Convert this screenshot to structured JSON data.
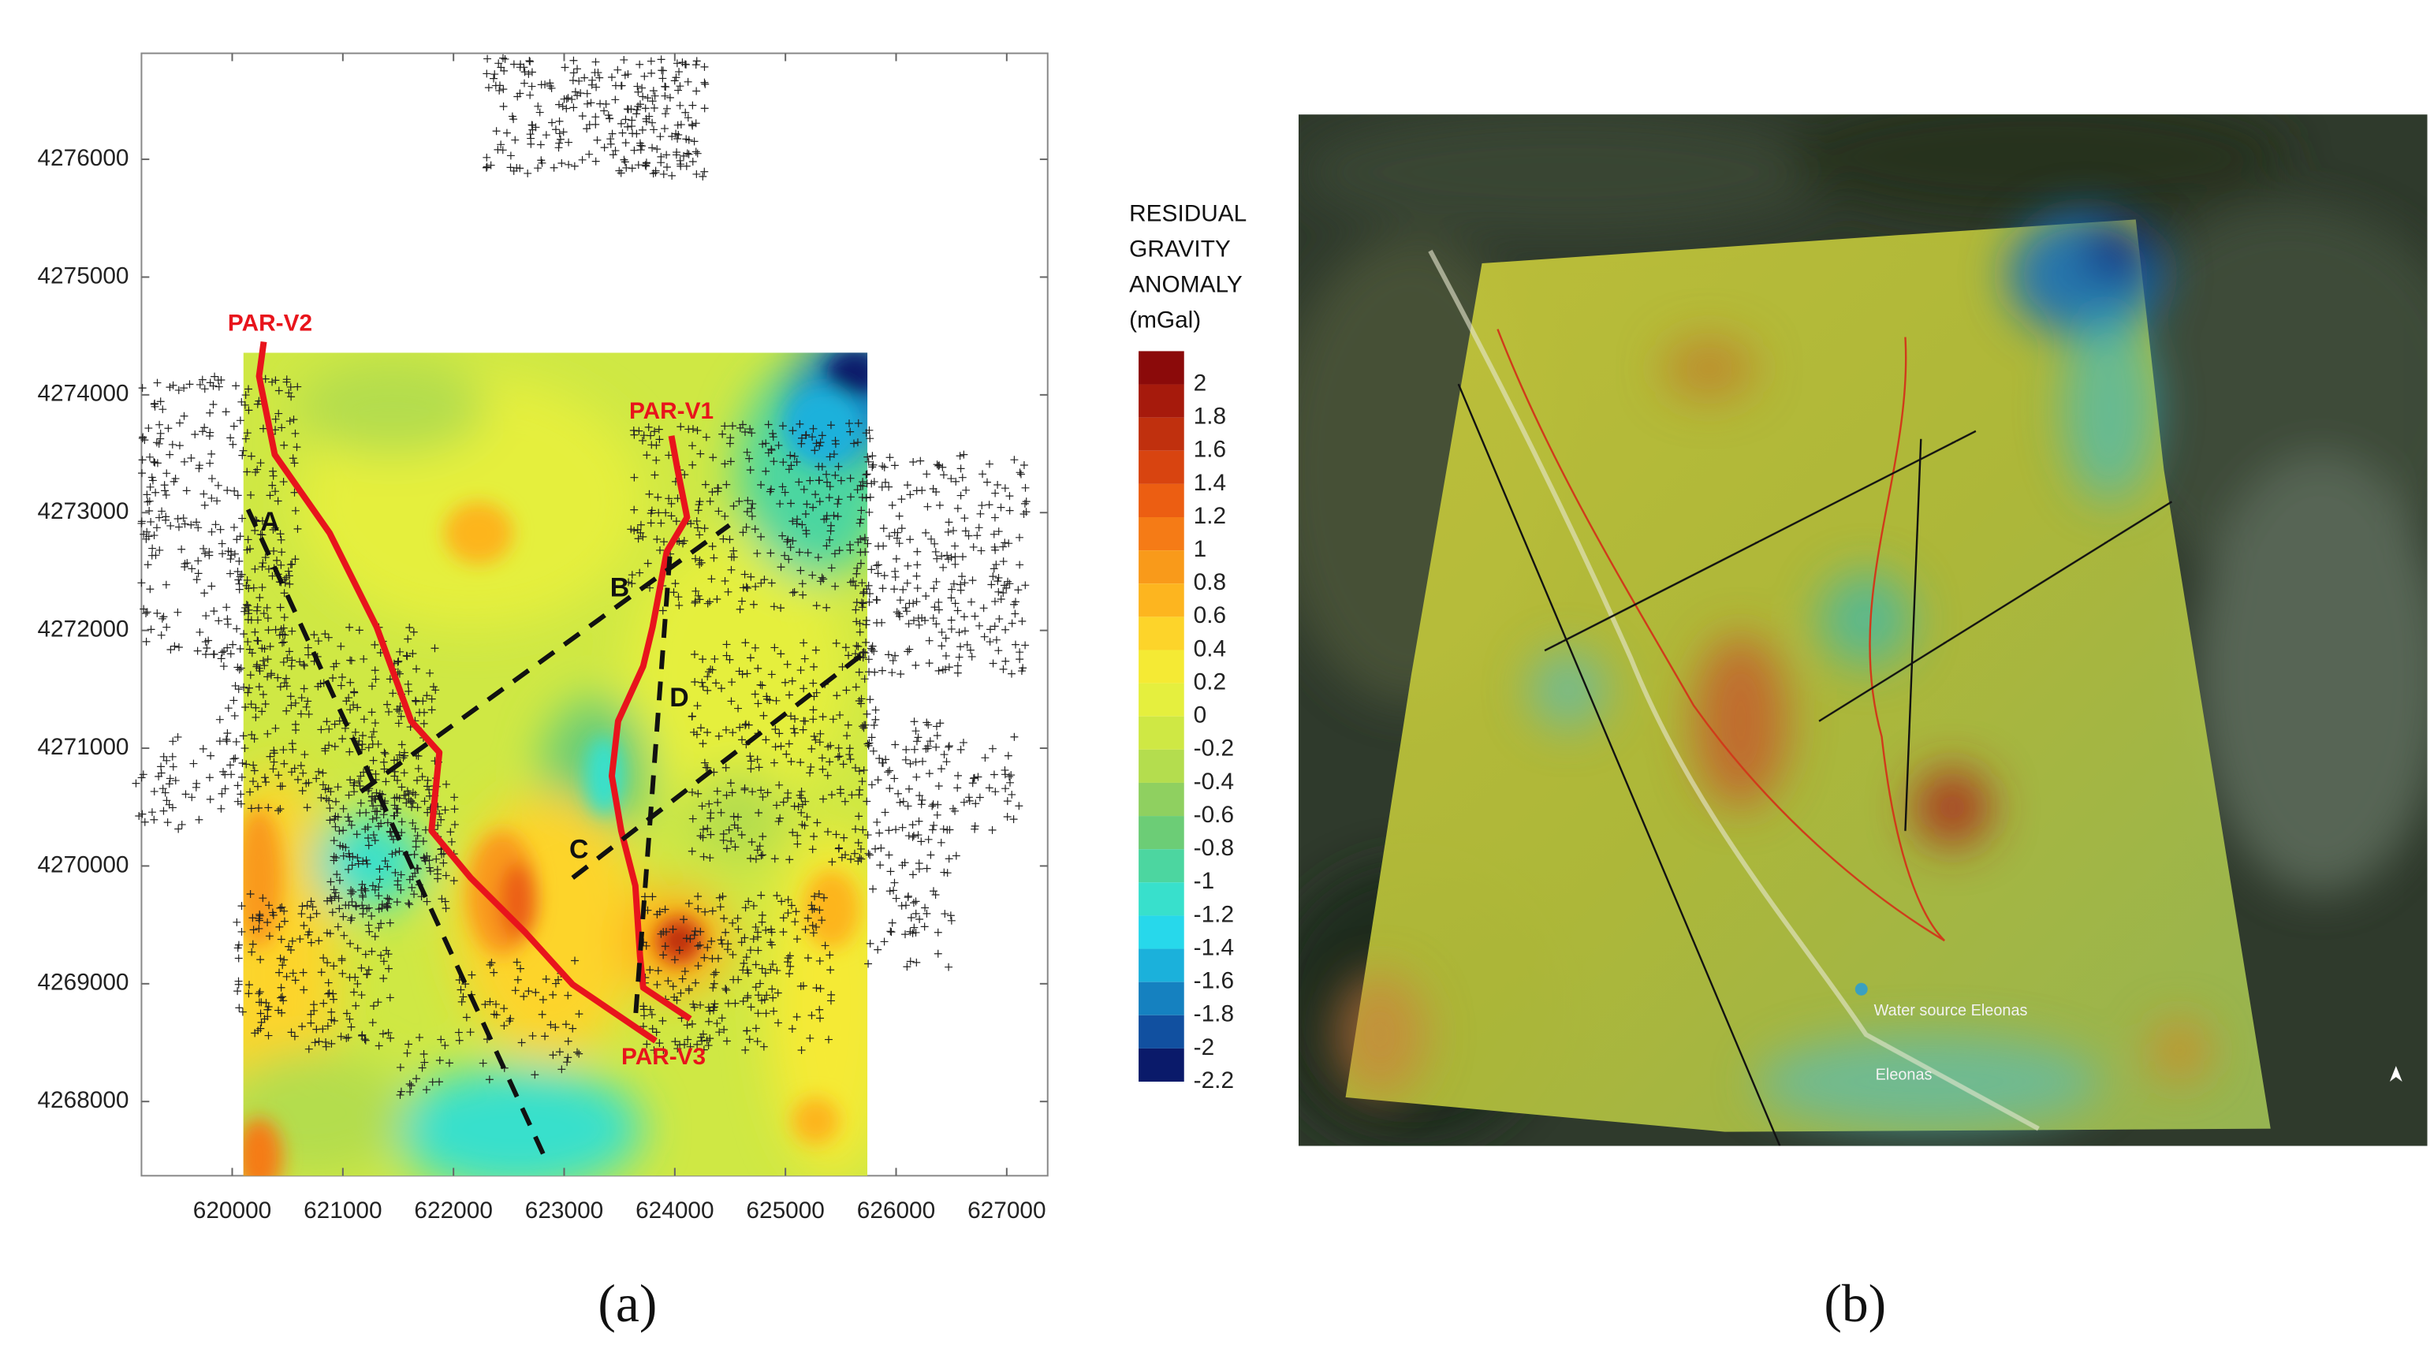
{
  "panel_a": {
    "xlim": [
      619180,
      627370
    ],
    "ylim": [
      4267370,
      4276900
    ],
    "xticks": [
      620000,
      621000,
      622000,
      623000,
      624000,
      625000,
      626000,
      627000
    ],
    "yticks": [
      4268000,
      4269000,
      4270000,
      4271000,
      4272000,
      4273000,
      4274000,
      4275000,
      4276000
    ],
    "profiles": [
      "PAR-V2",
      "PAR-V1",
      "PAR-V3"
    ],
    "sections": [
      "A",
      "B",
      "C",
      "D"
    ],
    "caption": "(a)"
  },
  "colorbar": {
    "title": [
      "RESIDUAL",
      "GRAVITY",
      "ANOMALY",
      "(mGal)"
    ],
    "lim": [
      -2.2,
      2.2
    ],
    "ticks": [
      2,
      1.8,
      1.6,
      1.4,
      1.2,
      1,
      0.8,
      0.6,
      0.4,
      0.2,
      0,
      -0.2,
      -0.4,
      -0.6,
      -0.8,
      -1,
      -1.2,
      -1.4,
      -1.6,
      -1.8,
      -2,
      -2.2
    ],
    "colors": [
      "#8b0a0a",
      "#a61a0c",
      "#c0300e",
      "#d84410",
      "#ec5e12",
      "#f57b16",
      "#f99a1a",
      "#fdb51f",
      "#fdd42a",
      "#f5ea34",
      "#e5ef3e",
      "#cfe844",
      "#b4dd4e",
      "#8fd060",
      "#6ccd76",
      "#4cd6a0",
      "#38e0cc",
      "#27d8eb",
      "#1bb1db",
      "#1581c0",
      "#1150a0",
      "#0a1a6a"
    ]
  },
  "panel_b": {
    "places": [
      "Water source Eleonas",
      "Eleonas"
    ],
    "caption": "(b)"
  }
}
